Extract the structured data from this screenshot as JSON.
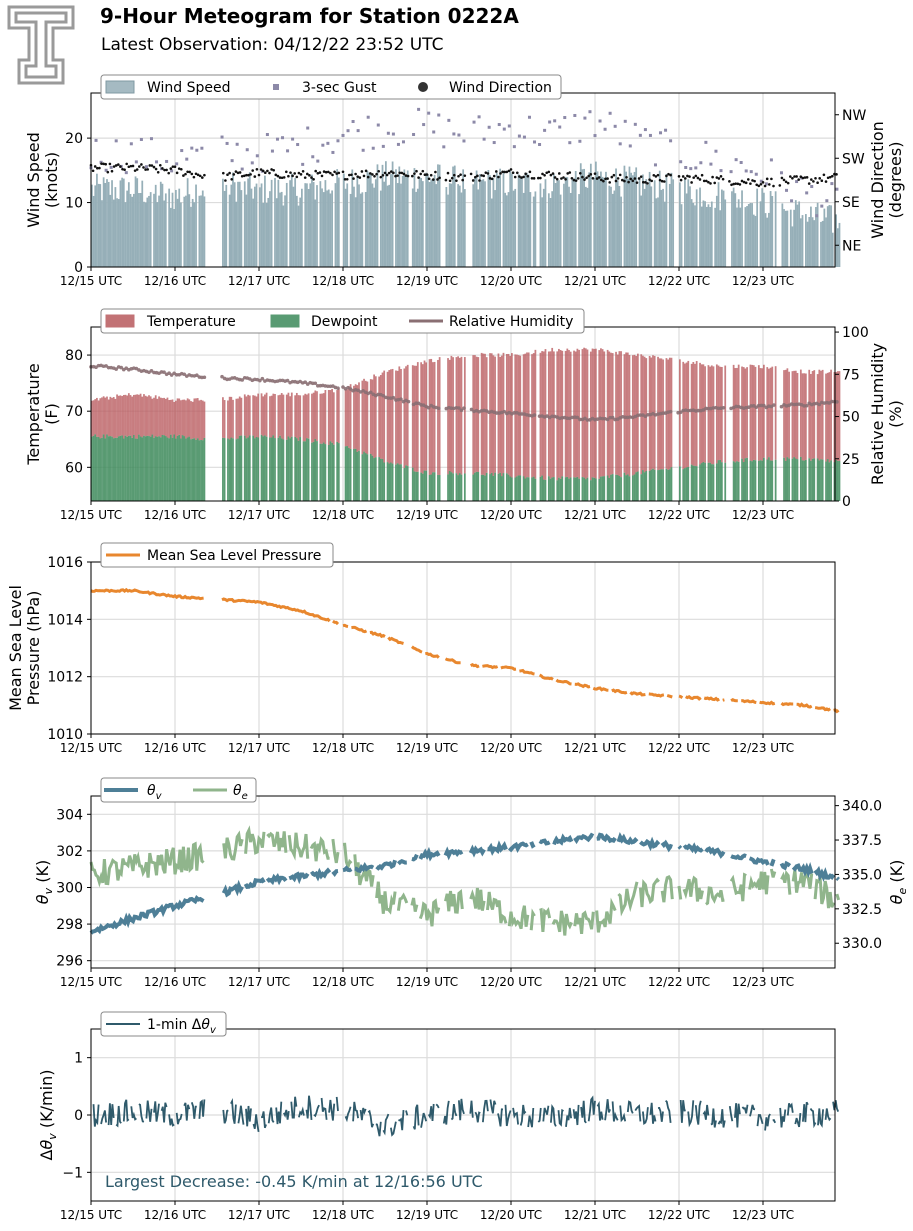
{
  "header": {
    "title": "9-Hour Meteogram for Station 0222A",
    "subtitle": "Latest Observation: 04/12/22 23:52 UTC",
    "logo": "tt-logo-icon"
  },
  "x_ticks": [
    "12/15 UTC",
    "12/16 UTC",
    "12/17 UTC",
    "12/18 UTC",
    "12/19 UTC",
    "12/20 UTC",
    "12/21 UTC",
    "12/22 UTC",
    "12/23 UTC"
  ],
  "colors": {
    "wind": "#96afb8",
    "wind_edge": "#6a8893",
    "gust": "#8c89a8",
    "dir": "#111111",
    "temp": "#b85a5e",
    "dew": "#3d8a5b",
    "rh": "#8a6f73",
    "pressure": "#e8872e",
    "thv": "#4e7f97",
    "the": "#90b58c",
    "dthv": "#2f5a6b",
    "grid": "#dcdcdc"
  },
  "chart_data": [
    {
      "id": "wind",
      "type": "area",
      "ylabel": "Wind Speed\n(knots)",
      "ylabel2": "Wind Direction\n(degrees)",
      "ylim": [
        0,
        27
      ],
      "yticks": [
        "0",
        "10",
        "20"
      ],
      "ylim2": [
        0,
        360
      ],
      "yticks2": [
        {
          "value": 45,
          "label": "NE"
        },
        {
          "value": 135,
          "label": "SE"
        },
        {
          "value": 225,
          "label": "SW"
        },
        {
          "value": 315,
          "label": "NW"
        }
      ],
      "legend": [
        "Wind Speed",
        "3-sec Gust",
        "Wind Direction"
      ],
      "series": [
        {
          "name": "Wind Speed",
          "type": "area",
          "x": [
            0,
            0.5,
            1,
            1.5,
            2,
            2.5,
            3,
            3.5,
            4,
            4.5,
            5,
            5.5,
            6,
            6.5,
            7,
            7.5,
            8,
            8.5,
            8.9
          ],
          "values": [
            12,
            12,
            11,
            13,
            12,
            12,
            13,
            14,
            14,
            13,
            13,
            13,
            14,
            13,
            12,
            11,
            10,
            8,
            7
          ]
        },
        {
          "name": "3-sec Gust",
          "type": "scatter",
          "x": [
            0,
            0.5,
            1,
            1.5,
            2,
            2.5,
            3,
            3.5,
            4,
            4.5,
            5,
            5.5,
            6,
            6.5,
            7,
            7.5,
            8,
            8.5,
            8.9
          ],
          "values": [
            17,
            17,
            16,
            17,
            17,
            18,
            20,
            21,
            21,
            20,
            21,
            20,
            22,
            19,
            17,
            16,
            14,
            11,
            9
          ]
        },
        {
          "name": "Wind Direction",
          "type": "scatter",
          "axis": "right",
          "x": [
            0,
            0.5,
            1,
            1.5,
            2,
            2.5,
            3,
            3.5,
            4,
            4.5,
            5,
            5.5,
            6,
            6.5,
            7,
            7.5,
            8,
            8.5,
            8.9
          ],
          "values": [
            205,
            205,
            200,
            185,
            195,
            190,
            190,
            195,
            190,
            185,
            195,
            190,
            185,
            180,
            185,
            180,
            175,
            180,
            185
          ]
        }
      ]
    },
    {
      "id": "temp",
      "type": "area",
      "ylabel": "Temperature\n(F)",
      "ylabel2": "Relative Humidity\n(%)",
      "ylim": [
        54,
        85
      ],
      "yticks": [
        "60",
        "70",
        "80"
      ],
      "ylim2": [
        0,
        103
      ],
      "yticks2": [
        "0",
        "25",
        "50",
        "75",
        "100"
      ],
      "legend": [
        "Temperature",
        "Dewpoint",
        "Relative Humidity"
      ],
      "series": [
        {
          "name": "Temperature",
          "type": "area",
          "x": [
            0,
            0.5,
            1,
            1.5,
            2,
            2.5,
            3,
            3.5,
            4,
            4.5,
            5,
            5.5,
            6,
            6.5,
            7,
            7.5,
            8,
            8.5,
            8.9
          ],
          "values": [
            72,
            73,
            72,
            72,
            73,
            73,
            74,
            77,
            79,
            80,
            80,
            81,
            81,
            80,
            79,
            78,
            78,
            77,
            77
          ]
        },
        {
          "name": "Dewpoint",
          "type": "area",
          "x": [
            0,
            0.5,
            1,
            1.5,
            2,
            2.5,
            3,
            3.5,
            4,
            4.5,
            5,
            5.5,
            6,
            6.5,
            7,
            7.5,
            8,
            8.5,
            8.9
          ],
          "values": [
            65.5,
            65.5,
            65.5,
            65,
            65.5,
            65,
            64,
            61,
            59,
            59,
            58.5,
            58,
            58,
            59,
            60,
            61,
            61.5,
            61.5,
            61
          ]
        },
        {
          "name": "Relative Humidity",
          "type": "line",
          "axis": "right",
          "x": [
            0,
            0.5,
            1,
            1.5,
            2,
            2.5,
            3,
            3.5,
            4,
            4.5,
            5,
            5.5,
            6,
            6.5,
            7,
            7.5,
            8,
            8.5,
            8.9
          ],
          "values": [
            80,
            78,
            75,
            73,
            72,
            70,
            67,
            62,
            56,
            54,
            52,
            50,
            48,
            50,
            53,
            55,
            56,
            57,
            59
          ]
        }
      ]
    },
    {
      "id": "pressure",
      "type": "line",
      "ylabel": "Mean Sea Level\nPressure (hPa)",
      "ylim": [
        1010,
        1016
      ],
      "yticks": [
        "1010",
        "1012",
        "1014",
        "1016"
      ],
      "legend": [
        "Mean Sea Level Pressure"
      ],
      "series": [
        {
          "name": "Mean Sea Level Pressure",
          "x": [
            0,
            0.5,
            1,
            1.5,
            2,
            2.5,
            3,
            3.5,
            4,
            4.5,
            5,
            5.5,
            6,
            6.5,
            7,
            7.5,
            8,
            8.5,
            8.9
          ],
          "values": [
            1015,
            1015,
            1014.8,
            1014.7,
            1014.6,
            1014.3,
            1013.8,
            1013.4,
            1012.8,
            1012.4,
            1012.3,
            1011.9,
            1011.6,
            1011.4,
            1011.3,
            1011.2,
            1011.1,
            1011.0,
            1010.8
          ]
        }
      ]
    },
    {
      "id": "theta",
      "type": "line",
      "ylabel": "θv (K)",
      "ylabel2": "θe (K)",
      "ylim": [
        295.6,
        305
      ],
      "yticks": [
        "296",
        "298",
        "300",
        "302",
        "304"
      ],
      "ylim2": [
        328.2,
        340.7
      ],
      "yticks2": [
        "330.0",
        "332.5",
        "335.0",
        "337.5",
        "340.0"
      ],
      "legend": [
        "θv",
        "θe"
      ],
      "series": [
        {
          "name": "θv",
          "x": [
            0,
            0.5,
            1,
            1.5,
            2,
            2.5,
            3,
            3.5,
            4,
            4.5,
            5,
            5.5,
            6,
            6.5,
            7,
            7.5,
            8,
            8.5,
            8.9
          ],
          "values": [
            297.6,
            298.3,
            299.0,
            299.6,
            300.3,
            300.6,
            300.9,
            301.2,
            301.8,
            302.0,
            302.2,
            302.5,
            302.8,
            302.5,
            302.2,
            301.9,
            301.4,
            301.0,
            300.5
          ]
        },
        {
          "name": "θe",
          "axis": "right",
          "x": [
            0,
            0.5,
            1,
            1.5,
            2,
            2.5,
            3,
            3.5,
            4,
            4.5,
            5,
            5.5,
            6,
            6.5,
            7,
            7.5,
            8,
            8.5,
            8.9
          ],
          "values": [
            335,
            335.5,
            336,
            336.5,
            337.5,
            337,
            336.5,
            333,
            332,
            333.5,
            332,
            331.5,
            331.5,
            333.5,
            334,
            333.5,
            334.5,
            334.5,
            333
          ]
        }
      ]
    },
    {
      "id": "dtheta",
      "type": "line",
      "ylabel": "Δθv (K/min)",
      "ylim": [
        -1.5,
        1.5
      ],
      "yticks": [
        "−1",
        "0",
        "1"
      ],
      "legend": [
        "1-min Δθv"
      ],
      "annotation": "Largest Decrease: -0.45 K/min at 12/16:56 UTC",
      "series": [
        {
          "name": "1-min Δθv",
          "x": [
            0,
            0.5,
            1,
            1.5,
            2,
            2.5,
            3,
            3.5,
            4,
            4.5,
            5,
            5.5,
            6,
            6.5,
            7,
            7.5,
            8,
            8.5,
            8.9
          ],
          "values": [
            0.0,
            0.05,
            0.0,
            0.1,
            -0.1,
            0.15,
            0.1,
            -0.2,
            0.0,
            0.1,
            0.0,
            -0.05,
            0.1,
            0.0,
            0.05,
            0.0,
            -0.05,
            0.0,
            0.05
          ]
        }
      ]
    }
  ]
}
